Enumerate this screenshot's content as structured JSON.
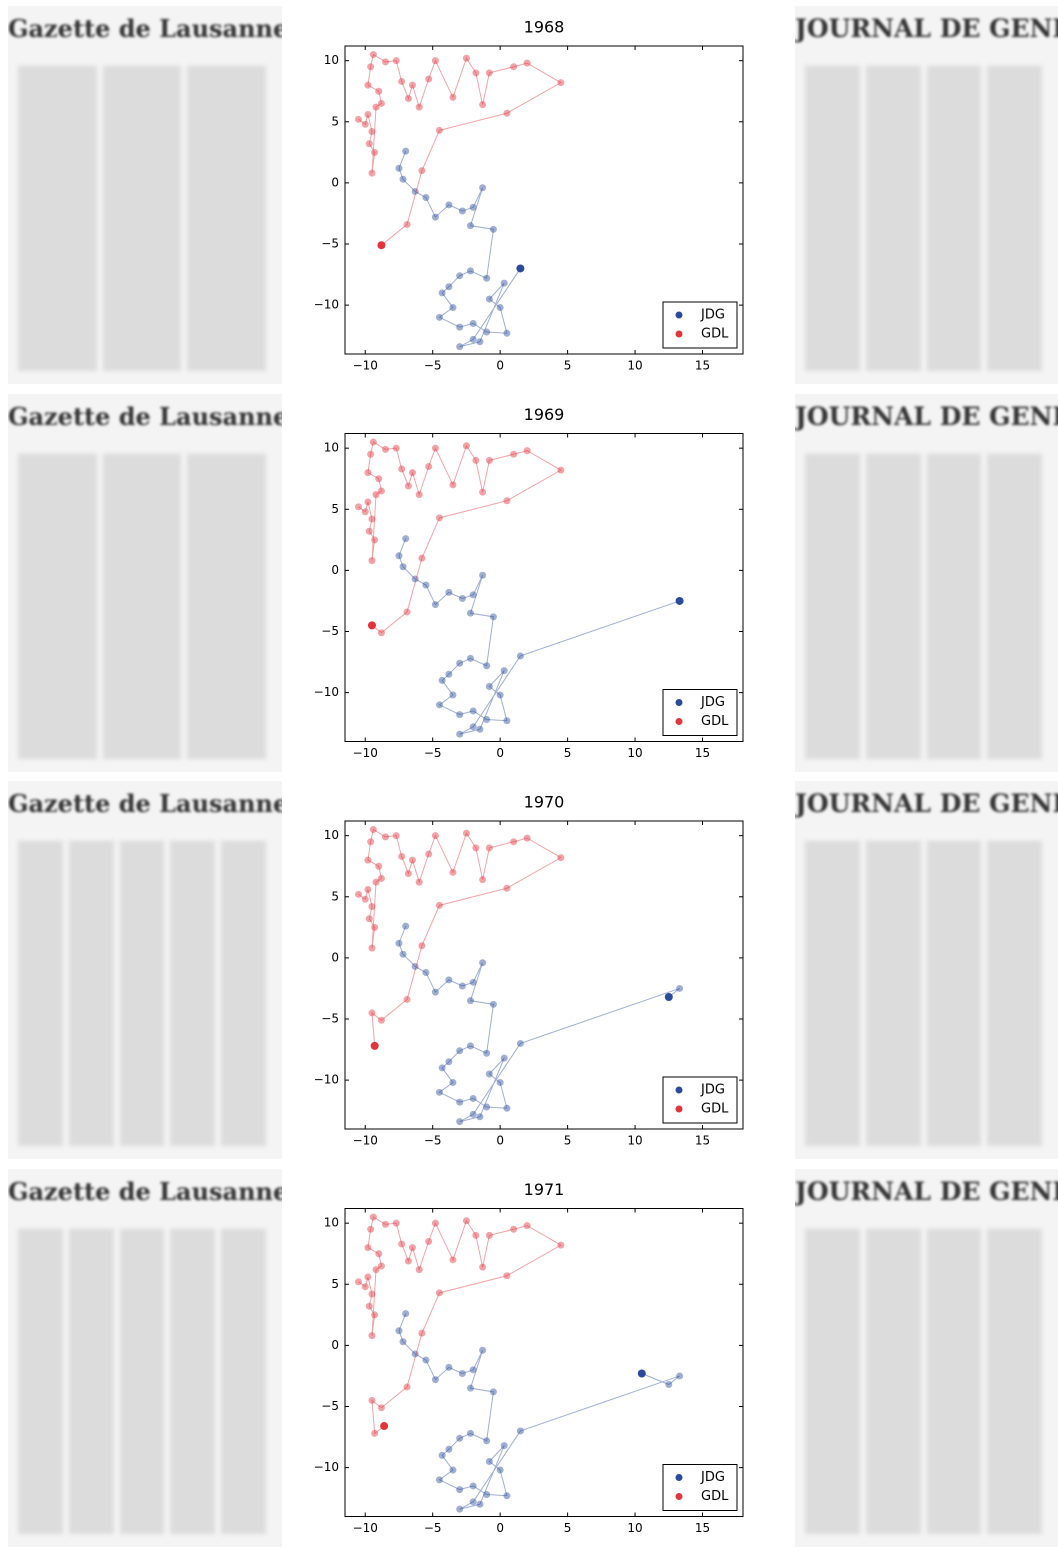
{
  "newspapers": [
    {
      "left": "Gazette de Lausanne",
      "right": "JOURNAL DE GENÈVE"
    },
    {
      "left": "Gazette de Lausanne",
      "right": "JOURNAL DE GENÈVE"
    },
    {
      "left": "Gazette de Lausanne",
      "right": "JOURNAL DE GENÈVE"
    },
    {
      "left": "Gazette de Lausanne",
      "right": "JOURNAL DE GENÈVE"
    }
  ],
  "chart_data": [
    {
      "type": "line",
      "title": "1968",
      "xlim": [
        -11.5,
        18
      ],
      "ylim": [
        -14,
        11.2
      ],
      "xticks": [
        {
          "value": -10,
          "label": "−10"
        },
        {
          "value": -5,
          "label": "−5"
        },
        0,
        5,
        10,
        15
      ],
      "yticks": [
        {
          "value": -10,
          "label": "−10"
        },
        {
          "value": -5,
          "label": "−5"
        },
        0,
        5,
        10
      ],
      "legend": "lower right",
      "series": [
        {
          "name": "JDG",
          "color": "#2a4b9b",
          "x": [
            -7.0,
            -7.5,
            -7.2,
            -6.3,
            -5.5,
            -4.8,
            -3.8,
            -2.8,
            -2.0,
            -1.3,
            -2.2,
            -0.5,
            -1.0,
            -2.2,
            -3.0,
            -3.8,
            -4.3,
            -3.5,
            -4.5,
            -3.0,
            -2.0,
            -1.0,
            0.5,
            0.0,
            -0.8,
            0.3,
            -1.5,
            -3.0,
            -2.0,
            1.5
          ],
          "y": [
            2.6,
            1.2,
            0.3,
            -0.7,
            -1.2,
            -2.8,
            -1.8,
            -2.3,
            -2.0,
            -0.4,
            -3.5,
            -3.8,
            -7.8,
            -7.2,
            -7.6,
            -8.5,
            -9.0,
            -10.2,
            -11.0,
            -11.8,
            -11.5,
            -12.2,
            -12.3,
            -10.2,
            -9.5,
            -8.2,
            -13.0,
            -13.4,
            -12.8,
            -7.0
          ]
        },
        {
          "name": "GDL",
          "color": "#e3343b",
          "x": [
            -10.5,
            -10,
            -9.8,
            -9.5,
            -9.7,
            -9.3,
            -9.5,
            -9.2,
            -8.8,
            -9.0,
            -9.8,
            -9.6,
            -9.4,
            -8.5,
            -7.7,
            -7.3,
            -6.8,
            -6.5,
            -6.0,
            -5.3,
            -4.8,
            -3.5,
            -2.5,
            -1.8,
            -1.3,
            -0.8,
            1.0,
            2.0,
            4.5,
            0.5,
            -4.5,
            -5.8,
            -6.9,
            -8.8
          ],
          "y": [
            5.2,
            4.8,
            5.6,
            4.2,
            3.2,
            2.5,
            0.8,
            6.2,
            6.5,
            7.5,
            8.0,
            9.5,
            10.5,
            9.9,
            10.0,
            8.3,
            6.9,
            8.0,
            6.2,
            8.5,
            10.0,
            7.0,
            10.2,
            9.0,
            6.4,
            9.0,
            9.5,
            9.8,
            8.2,
            5.7,
            4.3,
            1.0,
            -3.4,
            -5.1
          ]
        }
      ]
    },
    {
      "type": "line",
      "title": "1969",
      "xlim": [
        -11.5,
        18
      ],
      "ylim": [
        -14,
        11.2
      ],
      "xticks": [
        {
          "value": -10,
          "label": "−10"
        },
        {
          "value": -5,
          "label": "−5"
        },
        0,
        5,
        10,
        15
      ],
      "yticks": [
        {
          "value": -10,
          "label": "−10"
        },
        {
          "value": -5,
          "label": "−5"
        },
        0,
        5,
        10
      ],
      "legend": "lower right",
      "series": [
        {
          "name": "JDG",
          "color": "#2a4b9b",
          "x": [
            -7.0,
            -7.5,
            -7.2,
            -6.3,
            -5.5,
            -4.8,
            -3.8,
            -2.8,
            -2.0,
            -1.3,
            -2.2,
            -0.5,
            -1.0,
            -2.2,
            -3.0,
            -3.8,
            -4.3,
            -3.5,
            -4.5,
            -3.0,
            -2.0,
            -1.0,
            0.5,
            0.0,
            -0.8,
            0.3,
            -1.5,
            -3.0,
            -2.0,
            1.5,
            13.3
          ],
          "y": [
            2.6,
            1.2,
            0.3,
            -0.7,
            -1.2,
            -2.8,
            -1.8,
            -2.3,
            -2.0,
            -0.4,
            -3.5,
            -3.8,
            -7.8,
            -7.2,
            -7.6,
            -8.5,
            -9.0,
            -10.2,
            -11.0,
            -11.8,
            -11.5,
            -12.2,
            -12.3,
            -10.2,
            -9.5,
            -8.2,
            -13.0,
            -13.4,
            -12.8,
            -7.0,
            -2.5
          ]
        },
        {
          "name": "GDL",
          "color": "#e3343b",
          "x": [
            -10.5,
            -10,
            -9.8,
            -9.5,
            -9.7,
            -9.3,
            -9.5,
            -9.2,
            -8.8,
            -9.0,
            -9.8,
            -9.6,
            -9.4,
            -8.5,
            -7.7,
            -7.3,
            -6.8,
            -6.5,
            -6.0,
            -5.3,
            -4.8,
            -3.5,
            -2.5,
            -1.8,
            -1.3,
            -0.8,
            1.0,
            2.0,
            4.5,
            0.5,
            -4.5,
            -5.8,
            -6.9,
            -8.8,
            -9.5
          ],
          "y": [
            5.2,
            4.8,
            5.6,
            4.2,
            3.2,
            2.5,
            0.8,
            6.2,
            6.5,
            7.5,
            8.0,
            9.5,
            10.5,
            9.9,
            10.0,
            8.3,
            6.9,
            8.0,
            6.2,
            8.5,
            10.0,
            7.0,
            10.2,
            9.0,
            6.4,
            9.0,
            9.5,
            9.8,
            8.2,
            5.7,
            4.3,
            1.0,
            -3.4,
            -5.1,
            -4.5
          ]
        }
      ]
    },
    {
      "type": "line",
      "title": "1970",
      "xlim": [
        -11.5,
        18
      ],
      "ylim": [
        -14,
        11.2
      ],
      "xticks": [
        {
          "value": -10,
          "label": "−10"
        },
        {
          "value": -5,
          "label": "−5"
        },
        0,
        5,
        10,
        15
      ],
      "yticks": [
        {
          "value": -10,
          "label": "−10"
        },
        {
          "value": -5,
          "label": "−5"
        },
        0,
        5,
        10
      ],
      "legend": "lower right",
      "series": [
        {
          "name": "JDG",
          "color": "#2a4b9b",
          "x": [
            -7.0,
            -7.5,
            -7.2,
            -6.3,
            -5.5,
            -4.8,
            -3.8,
            -2.8,
            -2.0,
            -1.3,
            -2.2,
            -0.5,
            -1.0,
            -2.2,
            -3.0,
            -3.8,
            -4.3,
            -3.5,
            -4.5,
            -3.0,
            -2.0,
            -1.0,
            0.5,
            0.0,
            -0.8,
            0.3,
            -1.5,
            -3.0,
            -2.0,
            1.5,
            13.3,
            12.5
          ],
          "y": [
            2.6,
            1.2,
            0.3,
            -0.7,
            -1.2,
            -2.8,
            -1.8,
            -2.3,
            -2.0,
            -0.4,
            -3.5,
            -3.8,
            -7.8,
            -7.2,
            -7.6,
            -8.5,
            -9.0,
            -10.2,
            -11.0,
            -11.8,
            -11.5,
            -12.2,
            -12.3,
            -10.2,
            -9.5,
            -8.2,
            -13.0,
            -13.4,
            -12.8,
            -7.0,
            -2.5,
            -3.2
          ]
        },
        {
          "name": "GDL",
          "color": "#e3343b",
          "x": [
            -10.5,
            -10,
            -9.8,
            -9.5,
            -9.7,
            -9.3,
            -9.5,
            -9.2,
            -8.8,
            -9.0,
            -9.8,
            -9.6,
            -9.4,
            -8.5,
            -7.7,
            -7.3,
            -6.8,
            -6.5,
            -6.0,
            -5.3,
            -4.8,
            -3.5,
            -2.5,
            -1.8,
            -1.3,
            -0.8,
            1.0,
            2.0,
            4.5,
            0.5,
            -4.5,
            -5.8,
            -6.9,
            -8.8,
            -9.5,
            -9.3
          ],
          "y": [
            5.2,
            4.8,
            5.6,
            4.2,
            3.2,
            2.5,
            0.8,
            6.2,
            6.5,
            7.5,
            8.0,
            9.5,
            10.5,
            9.9,
            10.0,
            8.3,
            6.9,
            8.0,
            6.2,
            8.5,
            10.0,
            7.0,
            10.2,
            9.0,
            6.4,
            9.0,
            9.5,
            9.8,
            8.2,
            5.7,
            4.3,
            1.0,
            -3.4,
            -5.1,
            -4.5,
            -7.2
          ]
        }
      ]
    },
    {
      "type": "line",
      "title": "1971",
      "xlim": [
        -11.5,
        18
      ],
      "ylim": [
        -14,
        11.2
      ],
      "xticks": [
        {
          "value": -10,
          "label": "−10"
        },
        {
          "value": -5,
          "label": "−5"
        },
        0,
        5,
        10,
        15
      ],
      "yticks": [
        {
          "value": -10,
          "label": "−10"
        },
        {
          "value": -5,
          "label": "−5"
        },
        0,
        5,
        10
      ],
      "legend": "lower right",
      "series": [
        {
          "name": "JDG",
          "color": "#2a4b9b",
          "x": [
            -7.0,
            -7.5,
            -7.2,
            -6.3,
            -5.5,
            -4.8,
            -3.8,
            -2.8,
            -2.0,
            -1.3,
            -2.2,
            -0.5,
            -1.0,
            -2.2,
            -3.0,
            -3.8,
            -4.3,
            -3.5,
            -4.5,
            -3.0,
            -2.0,
            -1.0,
            0.5,
            0.0,
            -0.8,
            0.3,
            -1.5,
            -3.0,
            -2.0,
            1.5,
            13.3,
            12.5,
            10.5
          ],
          "y": [
            2.6,
            1.2,
            0.3,
            -0.7,
            -1.2,
            -2.8,
            -1.8,
            -2.3,
            -2.0,
            -0.4,
            -3.5,
            -3.8,
            -7.8,
            -7.2,
            -7.6,
            -8.5,
            -9.0,
            -10.2,
            -11.0,
            -11.8,
            -11.5,
            -12.2,
            -12.3,
            -10.2,
            -9.5,
            -8.2,
            -13.0,
            -13.4,
            -12.8,
            -7.0,
            -2.5,
            -3.2,
            -2.3
          ]
        },
        {
          "name": "GDL",
          "color": "#e3343b",
          "x": [
            -10.5,
            -10,
            -9.8,
            -9.5,
            -9.7,
            -9.3,
            -9.5,
            -9.2,
            -8.8,
            -9.0,
            -9.8,
            -9.6,
            -9.4,
            -8.5,
            -7.7,
            -7.3,
            -6.8,
            -6.5,
            -6.0,
            -5.3,
            -4.8,
            -3.5,
            -2.5,
            -1.8,
            -1.3,
            -0.8,
            1.0,
            2.0,
            4.5,
            0.5,
            -4.5,
            -5.8,
            -6.9,
            -8.8,
            -9.5,
            -9.3,
            -8.6
          ],
          "y": [
            5.2,
            4.8,
            5.6,
            4.2,
            3.2,
            2.5,
            0.8,
            6.2,
            6.5,
            7.5,
            8.0,
            9.5,
            10.5,
            9.9,
            10.0,
            8.3,
            6.9,
            8.0,
            6.2,
            8.5,
            10.0,
            7.0,
            10.2,
            9.0,
            6.4,
            9.0,
            9.5,
            9.8,
            8.2,
            5.7,
            4.3,
            1.0,
            -3.4,
            -5.1,
            -4.5,
            -7.2,
            -6.6
          ]
        }
      ]
    }
  ]
}
